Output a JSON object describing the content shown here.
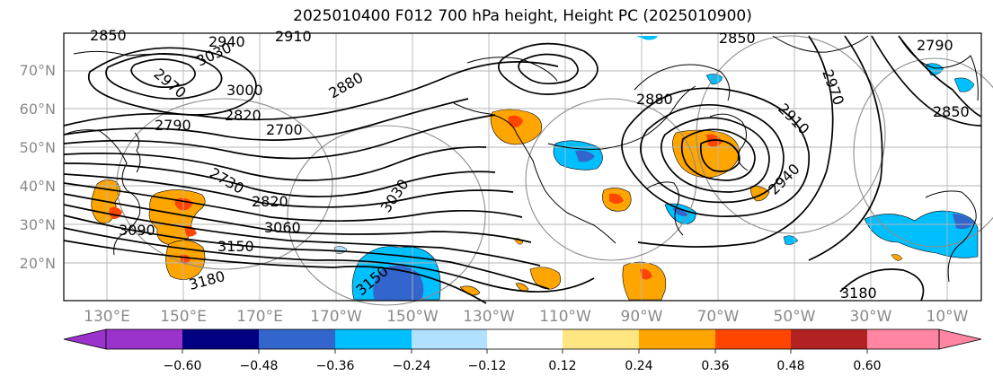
{
  "title": "2025010400 F012 700 hPa height, Height PC (2025010900)",
  "lat_labels": [
    "70°N",
    "60°N",
    "50°N",
    "40°N",
    "30°N",
    "20°N"
  ],
  "lon_labels": [
    "130°E",
    "150°E",
    "170°E",
    "170°W",
    "150°W",
    "130°W",
    "110°W",
    "90°W",
    "70°W",
    "50°W",
    "30°W",
    "10°W"
  ],
  "contour_labels": [
    "2850",
    "2940",
    "2910",
    "3030",
    "2970",
    "3000",
    "2880",
    "2820",
    "2790",
    "2700",
    "2730",
    "2820",
    "3060",
    "3090",
    "3150",
    "3180",
    "3030",
    "3150",
    "2850",
    "2880",
    "2970",
    "2790",
    "2850",
    "2910",
    "2940",
    "3180"
  ],
  "colorbar": {
    "ticks": [
      "−0.60",
      "−0.48",
      "−0.36",
      "−0.24",
      "−0.12",
      "0.12",
      "0.24",
      "0.36",
      "0.48",
      "0.60"
    ],
    "colors": [
      "#9933cc",
      "#000080",
      "#3366cc",
      "#00bfff",
      "#b0e2ff",
      "#ffffff",
      "#ffe680",
      "#ffa500",
      "#ff4500",
      "#b22222",
      "#ff85a2"
    ]
  }
}
